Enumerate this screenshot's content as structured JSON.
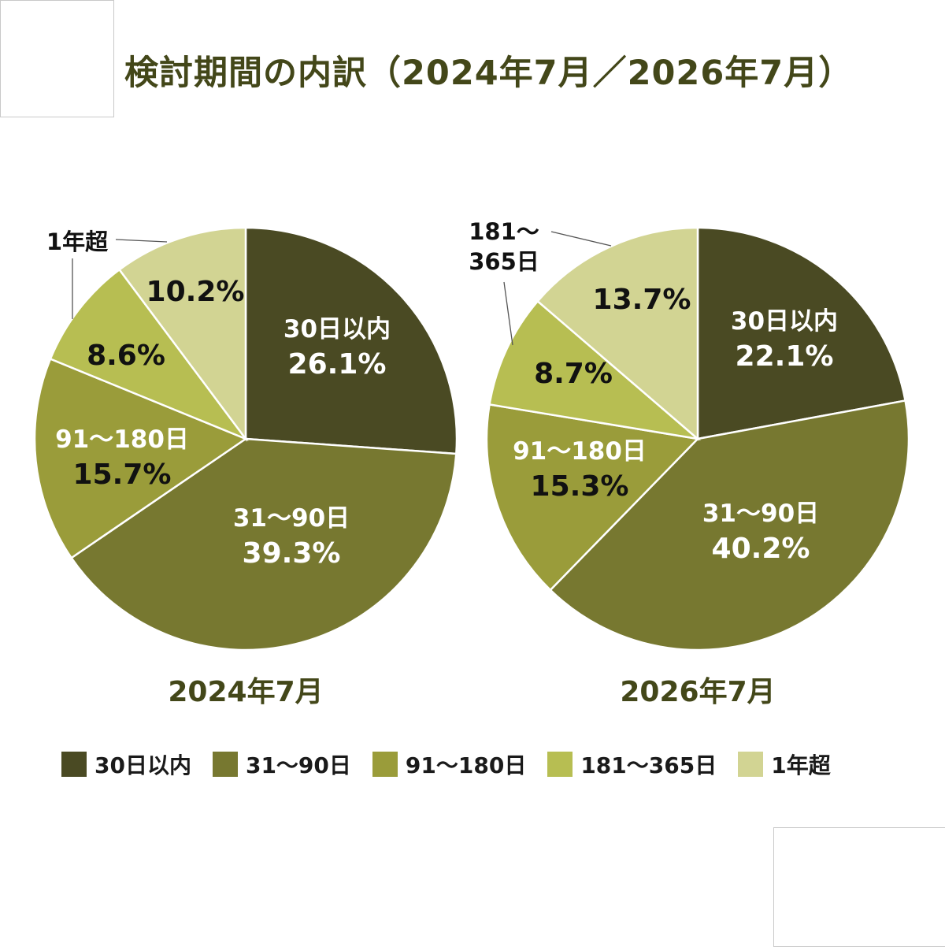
{
  "title": "検討期間の内訳（2024年7月／2026年7月）",
  "colors": {
    "title": "#434719",
    "slices": [
      "#4a4a23",
      "#777830",
      "#9a9c3a",
      "#b7be52",
      "#d2d493"
    ],
    "slice_label_dark_text": "#ffffff",
    "slice_label_light_text": "#111111"
  },
  "legend": [
    "30日以内",
    "31〜90日",
    "91〜180日",
    "181〜365日",
    "1年超"
  ],
  "chart_data": [
    {
      "type": "pie",
      "title": "2024年7月",
      "categories": [
        "30日以内",
        "31〜90日",
        "91〜180日",
        "181〜365日",
        "1年超"
      ],
      "values": [
        26.1,
        39.3,
        15.7,
        8.6,
        10.2
      ],
      "data_labels": [
        "26.1%",
        "39.3%",
        "15.7%",
        "8.6%",
        "10.2%"
      ],
      "outside_label": "1年超"
    },
    {
      "type": "pie",
      "title": "2026年7月",
      "categories": [
        "30日以内",
        "31〜90日",
        "91〜180日",
        "181〜365日",
        "1年超"
      ],
      "values": [
        22.1,
        40.2,
        15.3,
        8.7,
        13.7
      ],
      "data_labels": [
        "22.1%",
        "40.2%",
        "15.3%",
        "8.7%",
        "13.7%"
      ],
      "outside_label": "181〜365日"
    }
  ]
}
